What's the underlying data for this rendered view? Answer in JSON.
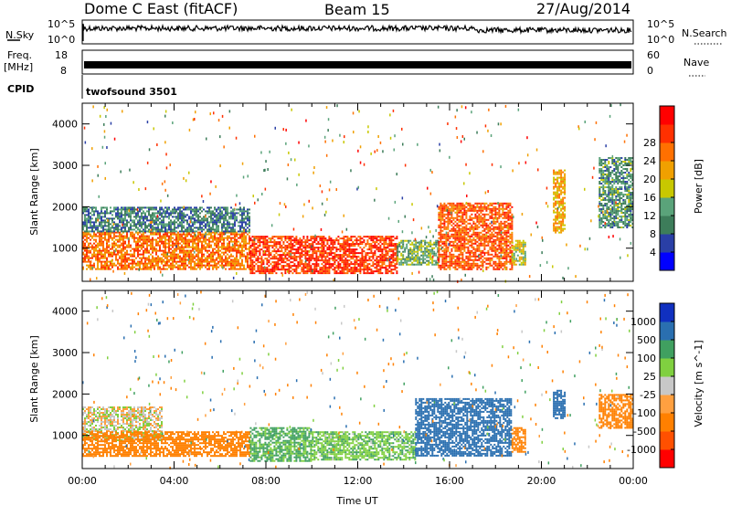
{
  "header": {
    "station": "Dome C East (fitACF)",
    "beam": "Beam 15",
    "date": "27/Aug/2014"
  },
  "strips": {
    "noise_left_label": "N.Sky",
    "noise_right_label": "N.Search",
    "noise_left_ticks": [
      "10^5",
      "10^0"
    ],
    "noise_right_ticks": [
      "10^5",
      "10^0"
    ],
    "freq_label": "Freq.",
    "freq_unit": "[MHz]",
    "freq_ticks": [
      "18",
      "8"
    ],
    "nave_label": "Nave",
    "nave_ticks": [
      "60",
      "0"
    ],
    "cpid_label": "CPID",
    "cpid_value": "twofsound 3501"
  },
  "colors": {
    "power_scale": [
      "#0000ff",
      "#2a3fa6",
      "#3d7d5a",
      "#5aa37a",
      "#c8c800",
      "#f0a000",
      "#ff7000",
      "#ff3000",
      "#ff0000"
    ],
    "velocity_scale": [
      "#ff0000",
      "#ff5000",
      "#ff8000",
      "#ffa040",
      "#c8c8c8",
      "#80d040",
      "#40a060",
      "#2a6fb0",
      "#1030c0"
    ]
  },
  "chart_data": [
    {
      "type": "heatmap",
      "name": "power",
      "xlabel": "",
      "ylabel": "Slant Range [km]",
      "y_ticks": [
        1000,
        2000,
        3000,
        4000
      ],
      "y_tick_labels": [
        "1000",
        "2000",
        "3000",
        "4000"
      ],
      "ylim": [
        200,
        4500
      ],
      "xlim": [
        0,
        24
      ],
      "colorbar_label": "Power [dB]",
      "colorbar_ticks": [
        "4",
        "8",
        "12",
        "16",
        "20",
        "24",
        "28"
      ],
      "regions": [
        {
          "t0": 0.0,
          "t1": 7.3,
          "r0": 500,
          "r1": 1400,
          "v": 24
        },
        {
          "t0": 0.0,
          "t1": 7.3,
          "r0": 1400,
          "r1": 2000,
          "v": 8
        },
        {
          "t0": 7.3,
          "t1": 13.7,
          "r0": 400,
          "r1": 1300,
          "v": 28
        },
        {
          "t0": 13.7,
          "t1": 15.5,
          "r0": 600,
          "r1": 1200,
          "v": 12
        },
        {
          "t0": 15.5,
          "t1": 18.7,
          "r0": 500,
          "r1": 2100,
          "v": 26
        },
        {
          "t0": 18.7,
          "t1": 19.3,
          "r0": 600,
          "r1": 1200,
          "v": 16
        },
        {
          "t0": 20.5,
          "t1": 21.0,
          "r0": 1400,
          "r1": 2900,
          "v": 20
        },
        {
          "t0": 22.5,
          "t1": 24.0,
          "r0": 1500,
          "r1": 3200,
          "v": 10
        }
      ]
    },
    {
      "type": "heatmap",
      "name": "velocity",
      "xlabel": "Time UT",
      "ylabel": "Slant Range [km]",
      "y_ticks": [
        1000,
        2000,
        3000,
        4000
      ],
      "y_tick_labels": [
        "1000",
        "2000",
        "3000",
        "4000"
      ],
      "ylim": [
        200,
        4500
      ],
      "xlim": [
        0,
        24
      ],
      "x_tick_labels": [
        "00:00",
        "04:00",
        "08:00",
        "12:00",
        "16:00",
        "20:00",
        "00:00"
      ],
      "colorbar_label": "Velocity [m s^-1]",
      "colorbar_ticks": [
        "-1000",
        "-500",
        "-100",
        "-25",
        "25",
        "100",
        "500",
        "1000"
      ],
      "regions": [
        {
          "t0": 0.0,
          "t1": 3.5,
          "r0": 900,
          "r1": 1700,
          "v": 0
        },
        {
          "t0": 0.0,
          "t1": 7.3,
          "r0": 500,
          "r1": 1100,
          "v": -200
        },
        {
          "t0": 7.3,
          "t1": 10.0,
          "r0": 400,
          "r1": 1200,
          "v": 120
        },
        {
          "t0": 10.0,
          "t1": 14.5,
          "r0": 400,
          "r1": 1100,
          "v": 80
        },
        {
          "t0": 14.5,
          "t1": 18.7,
          "r0": 500,
          "r1": 1900,
          "v": 600
        },
        {
          "t0": 18.7,
          "t1": 19.3,
          "r0": 600,
          "r1": 1200,
          "v": -150
        },
        {
          "t0": 20.5,
          "t1": 21.0,
          "r0": 1400,
          "r1": 2100,
          "v": 800
        },
        {
          "t0": 22.5,
          "t1": 24.0,
          "r0": 1200,
          "r1": 2000,
          "v": -300
        }
      ]
    }
  ]
}
